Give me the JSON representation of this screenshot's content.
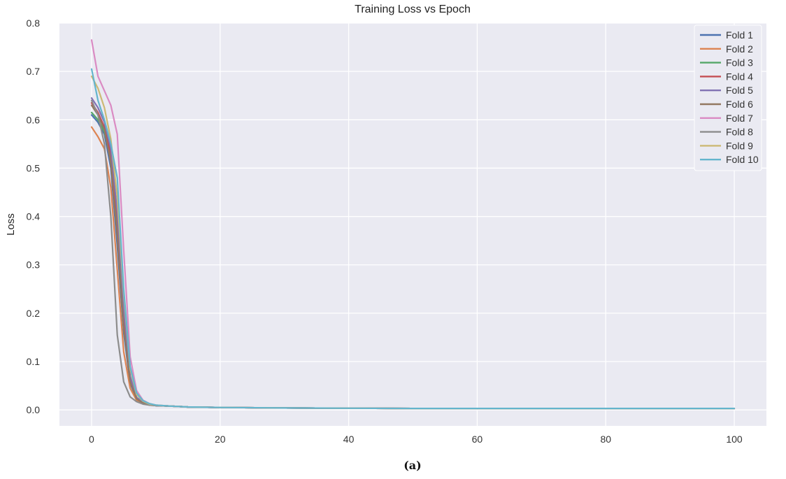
{
  "figure": {
    "caption": "(a)"
  },
  "chart_data": {
    "type": "line",
    "title": "Training Loss vs Epoch",
    "xlabel": "",
    "ylabel": "Loss",
    "xlim": [
      -5,
      105
    ],
    "ylim": [
      -0.033,
      0.8
    ],
    "xticks": [
      0,
      20,
      40,
      60,
      80,
      100
    ],
    "yticks": [
      0.0,
      0.1,
      0.2,
      0.3,
      0.4,
      0.5,
      0.6,
      0.7,
      0.8
    ],
    "grid": true,
    "legend_position": "top-right",
    "x": [
      0,
      1,
      2,
      3,
      4,
      5,
      6,
      7,
      8,
      9,
      10,
      12,
      15,
      20,
      30,
      40,
      50,
      60,
      70,
      80,
      90,
      100
    ],
    "series": [
      {
        "name": "Fold 1",
        "color": "#4c72b0",
        "values": [
          0.61,
          0.595,
          0.57,
          0.5,
          0.34,
          0.16,
          0.055,
          0.022,
          0.014,
          0.011,
          0.009,
          0.008,
          0.006,
          0.005,
          0.004,
          0.0035,
          0.003,
          0.003,
          0.003,
          0.003,
          0.003,
          0.003
        ]
      },
      {
        "name": "Fold 2",
        "color": "#dd8452",
        "values": [
          0.585,
          0.565,
          0.54,
          0.46,
          0.29,
          0.12,
          0.045,
          0.02,
          0.013,
          0.01,
          0.009,
          0.008,
          0.006,
          0.005,
          0.004,
          0.0035,
          0.003,
          0.003,
          0.003,
          0.003,
          0.003,
          0.003
        ]
      },
      {
        "name": "Fold 3",
        "color": "#55a868",
        "values": [
          0.615,
          0.6,
          0.575,
          0.52,
          0.38,
          0.18,
          0.06,
          0.024,
          0.015,
          0.011,
          0.009,
          0.008,
          0.006,
          0.005,
          0.004,
          0.0035,
          0.003,
          0.003,
          0.003,
          0.003,
          0.003,
          0.003
        ]
      },
      {
        "name": "Fold 4",
        "color": "#c44e52",
        "values": [
          0.635,
          0.615,
          0.585,
          0.53,
          0.4,
          0.2,
          0.065,
          0.025,
          0.015,
          0.011,
          0.009,
          0.008,
          0.006,
          0.005,
          0.004,
          0.0035,
          0.003,
          0.003,
          0.003,
          0.003,
          0.003,
          0.003
        ]
      },
      {
        "name": "Fold 5",
        "color": "#8172b3",
        "values": [
          0.645,
          0.625,
          0.595,
          0.54,
          0.41,
          0.21,
          0.07,
          0.026,
          0.016,
          0.012,
          0.009,
          0.008,
          0.006,
          0.005,
          0.004,
          0.0035,
          0.003,
          0.003,
          0.003,
          0.003,
          0.003,
          0.003
        ]
      },
      {
        "name": "Fold 6",
        "color": "#937860",
        "values": [
          0.63,
          0.61,
          0.58,
          0.51,
          0.36,
          0.17,
          0.058,
          0.023,
          0.014,
          0.011,
          0.009,
          0.008,
          0.006,
          0.005,
          0.004,
          0.0035,
          0.003,
          0.003,
          0.003,
          0.003,
          0.003,
          0.003
        ]
      },
      {
        "name": "Fold 7",
        "color": "#da8bc3",
        "values": [
          0.765,
          0.69,
          0.66,
          0.63,
          0.57,
          0.33,
          0.11,
          0.04,
          0.02,
          0.013,
          0.01,
          0.008,
          0.006,
          0.005,
          0.004,
          0.0035,
          0.003,
          0.003,
          0.003,
          0.003,
          0.003,
          0.003
        ]
      },
      {
        "name": "Fold 8",
        "color": "#8c8c8c",
        "values": [
          0.64,
          0.61,
          0.55,
          0.4,
          0.155,
          0.058,
          0.027,
          0.017,
          0.012,
          0.01,
          0.009,
          0.008,
          0.006,
          0.005,
          0.004,
          0.0035,
          0.003,
          0.003,
          0.003,
          0.003,
          0.003,
          0.003
        ]
      },
      {
        "name": "Fold 9",
        "color": "#ccb974",
        "values": [
          0.69,
          0.665,
          0.625,
          0.56,
          0.44,
          0.24,
          0.085,
          0.032,
          0.018,
          0.012,
          0.01,
          0.008,
          0.006,
          0.005,
          0.004,
          0.0035,
          0.003,
          0.003,
          0.003,
          0.003,
          0.003,
          0.003
        ]
      },
      {
        "name": "Fold 10",
        "color": "#64b5cd",
        "values": [
          0.705,
          0.64,
          0.6,
          0.55,
          0.48,
          0.25,
          0.09,
          0.035,
          0.019,
          0.013,
          0.01,
          0.008,
          0.006,
          0.005,
          0.004,
          0.0035,
          0.003,
          0.003,
          0.003,
          0.003,
          0.003,
          0.003
        ]
      }
    ]
  }
}
